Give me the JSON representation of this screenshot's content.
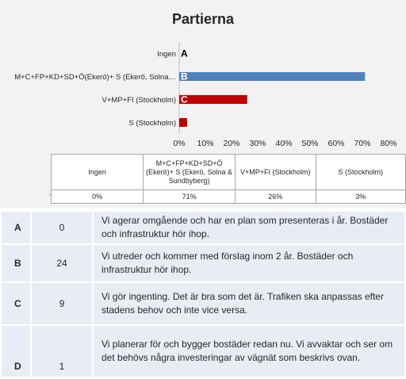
{
  "chart_data": {
    "type": "bar",
    "orientation": "horizontal",
    "title": "Partierna",
    "categories": [
      "Ingen",
      "M+C+FP+KD+SD+Ö(Ekerö)+ S (Ekerö, Solna…",
      "V+MP+FI (Stockholm)",
      "S (Stockholm)"
    ],
    "letters": [
      "A",
      "B",
      "C",
      "D"
    ],
    "values": [
      0,
      71,
      26,
      3
    ],
    "bar_colors": [
      "#4f81bd",
      "#4f81bd",
      "#c00000",
      "#c00000"
    ],
    "xlim": [
      0,
      80
    ],
    "xticks": [
      0,
      10,
      20,
      30,
      40,
      50,
      60,
      70,
      80
    ],
    "xtick_labels": [
      "0%",
      "10%",
      "20%",
      "30%",
      "40%",
      "50%",
      "60%",
      "70%",
      "80%"
    ],
    "grid": false,
    "data_table": {
      "row_marker": ".",
      "headers": [
        "Ingen",
        "M+C+FP+KD+SD+Ö (Ekerö)+ S (Ekerö, Solna & Sundbyberg)",
        "V+MP+FI (Stockholm)",
        "S (Stockholm)"
      ],
      "values": [
        "0%",
        "71%",
        "26%",
        "3%"
      ]
    }
  },
  "answers": [
    {
      "letter": "A",
      "count": "0",
      "text": "Vi agerar omgående och har en plan som presenteras i år. Bostäder och infrastruktur hör ihop."
    },
    {
      "letter": "B",
      "count": "24",
      "text": "Vi utreder och kommer med förslag inom 2 år. Bostäder och infrastruktur hör ihop."
    },
    {
      "letter": "C",
      "count": "9",
      "text": "Vi gör ingenting. Det är bra som det är. Trafiken ska anpassas efter stadens behov och inte vice versa."
    },
    {
      "letter": "D",
      "count": "1",
      "text": "Vi planerar för och bygger bostäder redan nu. Vi avvaktar och ser om det behövs några investeringar av vägnät som beskrivs ovan."
    }
  ]
}
